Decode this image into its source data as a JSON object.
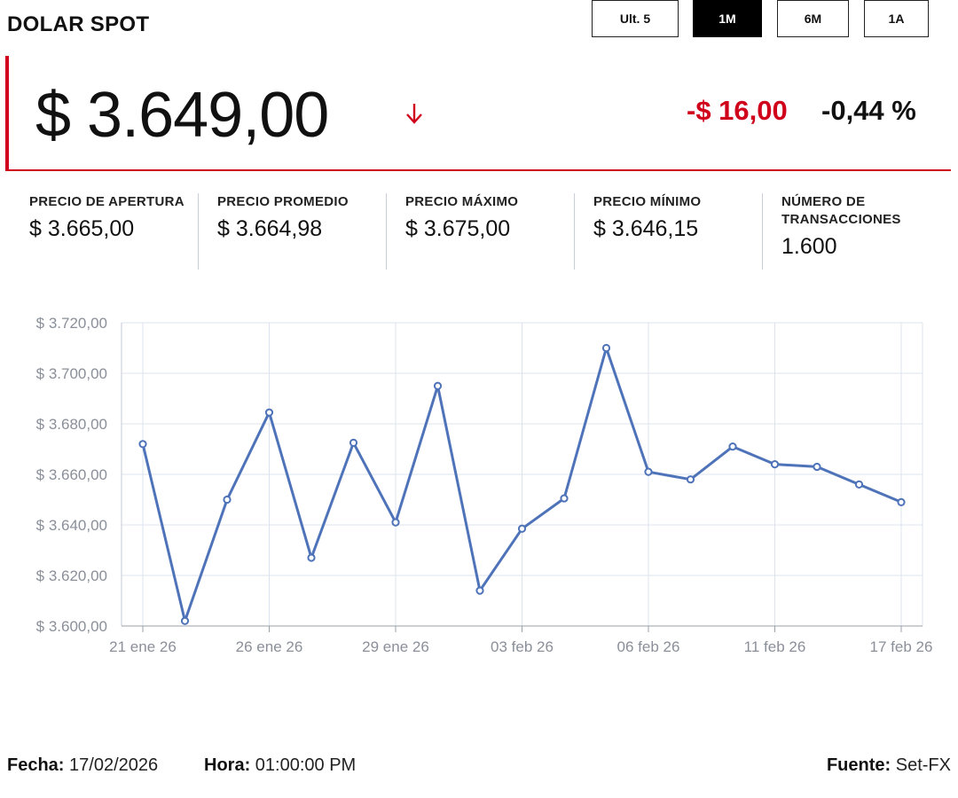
{
  "title": "DOLAR SPOT",
  "price": {
    "current": "$ 3.649,00",
    "direction_icon": "arrow-down-icon",
    "change_abs": "-$ 16,00",
    "change_pct": "-0,44 %",
    "accent_color": "#d0021b"
  },
  "stats": [
    {
      "label": "PRECIO DE APERTURA",
      "value": "$ 3.665,00"
    },
    {
      "label": "PRECIO PROMEDIO",
      "value": "$ 3.664,98"
    },
    {
      "label": "PRECIO MÁXIMO",
      "value": "$ 3.675,00"
    },
    {
      "label": "PRECIO MÍNIMO",
      "value": "$ 3.646,15"
    },
    {
      "label": "NÚMERO DE TRANSACCIONES",
      "value": "1.600"
    }
  ],
  "chart_data": {
    "type": "line",
    "title": "",
    "xlabel": "",
    "ylabel": "",
    "x": [
      "21 ene 26",
      "22 ene 26",
      "23 ene 26",
      "26 ene 26",
      "27 ene 26",
      "28 ene 26",
      "29 ene 26",
      "30 ene 26",
      "02 feb 26",
      "03 feb 26",
      "04 feb 26",
      "05 feb 26",
      "06 feb 26",
      "09 feb 26",
      "10 feb 26",
      "11 feb 26",
      "12 feb 26",
      "13 feb 26",
      "17 feb 26"
    ],
    "series": [
      {
        "name": "",
        "color": "#4e73b9",
        "values": [
          3672,
          3602,
          3650,
          3684.5,
          3627,
          3672.5,
          3641,
          3695,
          3614,
          3638.5,
          3650.5,
          3710,
          3661,
          3658,
          3671,
          3664,
          3663,
          3656,
          3649
        ]
      }
    ],
    "x_tick_labels": [
      "21 ene 26",
      "26 ene 26",
      "29 ene 26",
      "03 feb 26",
      "06 feb 26",
      "11 feb 26",
      "17 feb 26"
    ],
    "y_tick_labels": [
      "$ 3.600,00",
      "$ 3.620,00",
      "$ 3.640,00",
      "$ 3.660,00",
      "$ 3.680,00",
      "$ 3.700,00",
      "$ 3.720,00"
    ],
    "ylim": [
      3600,
      3720
    ],
    "grid": true,
    "legend": "none"
  },
  "range_buttons": [
    {
      "label": "Ult. 5",
      "active": false
    },
    {
      "label": "1M",
      "active": true
    },
    {
      "label": "6M",
      "active": false
    },
    {
      "label": "1A",
      "active": false
    }
  ],
  "footer": {
    "fecha_label": "Fecha:",
    "fecha_value": "17/02/2026",
    "hora_label": "Hora:",
    "hora_value": "01:00:00 PM",
    "fuente_label": "Fuente:",
    "fuente_value": "Set-FX"
  }
}
